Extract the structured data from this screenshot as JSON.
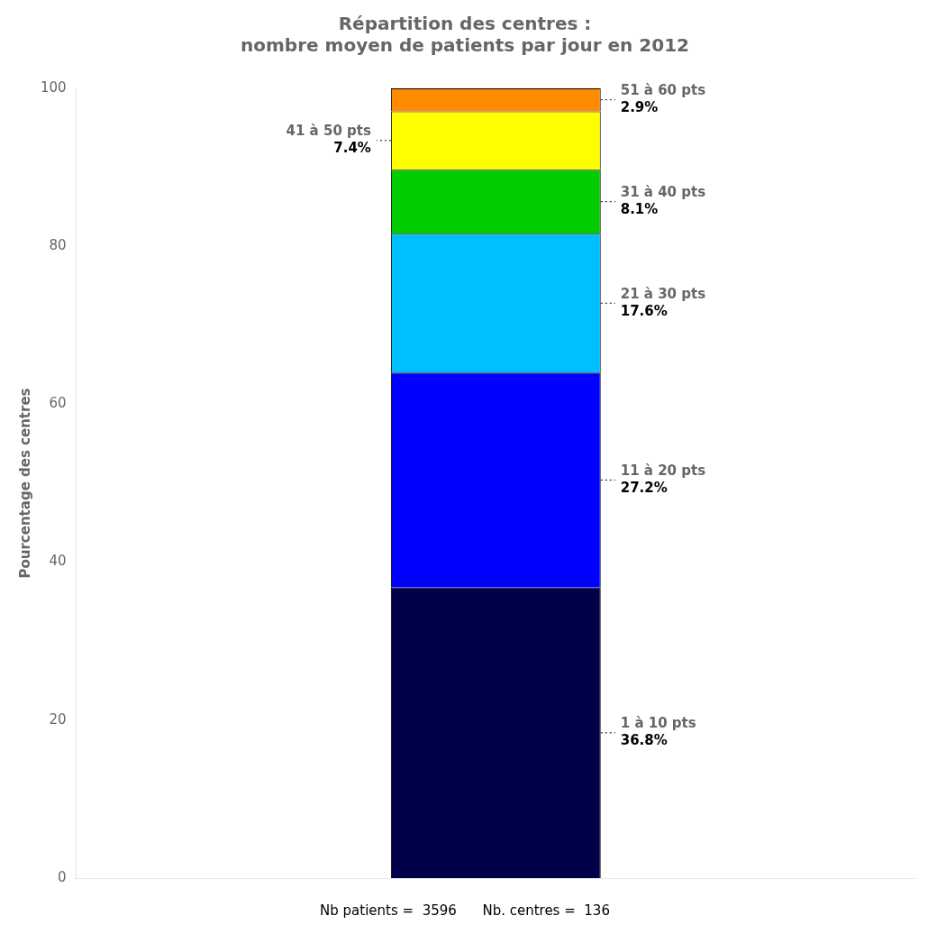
{
  "chart_data": {
    "type": "bar",
    "stacked": true,
    "title": [
      "Répartition des centres :",
      "nombre moyen de patients par jour en 2012"
    ],
    "ylabel": "Pourcentage des centres",
    "subtitle": "Nb patients =  3596      Nb. centres =  136",
    "categories": [
      null
    ],
    "series": [
      {
        "name": "1 à 10 pts",
        "color": "#00004B",
        "values": [
          36.8
        ],
        "value_labels": [
          "36.8%"
        ]
      },
      {
        "name": "11 à 20 pts",
        "color": "#0000FF",
        "values": [
          27.2
        ],
        "value_labels": [
          "27.2%"
        ]
      },
      {
        "name": "21 à 30 pts",
        "color": "#00BFFF",
        "values": [
          17.6
        ],
        "value_labels": [
          "17.6%"
        ]
      },
      {
        "name": "31 à 40 pts",
        "color": "#00CC00",
        "values": [
          8.1
        ],
        "value_labels": [
          "8.1%"
        ]
      },
      {
        "name": "41 à 50 pts",
        "color": "#FFFF00",
        "values": [
          7.4
        ],
        "value_labels": [
          "7.4%"
        ]
      },
      {
        "name": "51 à 60 pts",
        "color": "#FF8C00",
        "values": [
          2.9
        ],
        "value_labels": [
          "2.9%"
        ]
      }
    ],
    "ylim": [
      0,
      100
    ],
    "yticks": [
      0,
      20,
      40,
      60,
      80,
      100
    ],
    "grid": false,
    "data_labels": true,
    "tick_labels": "y"
  }
}
